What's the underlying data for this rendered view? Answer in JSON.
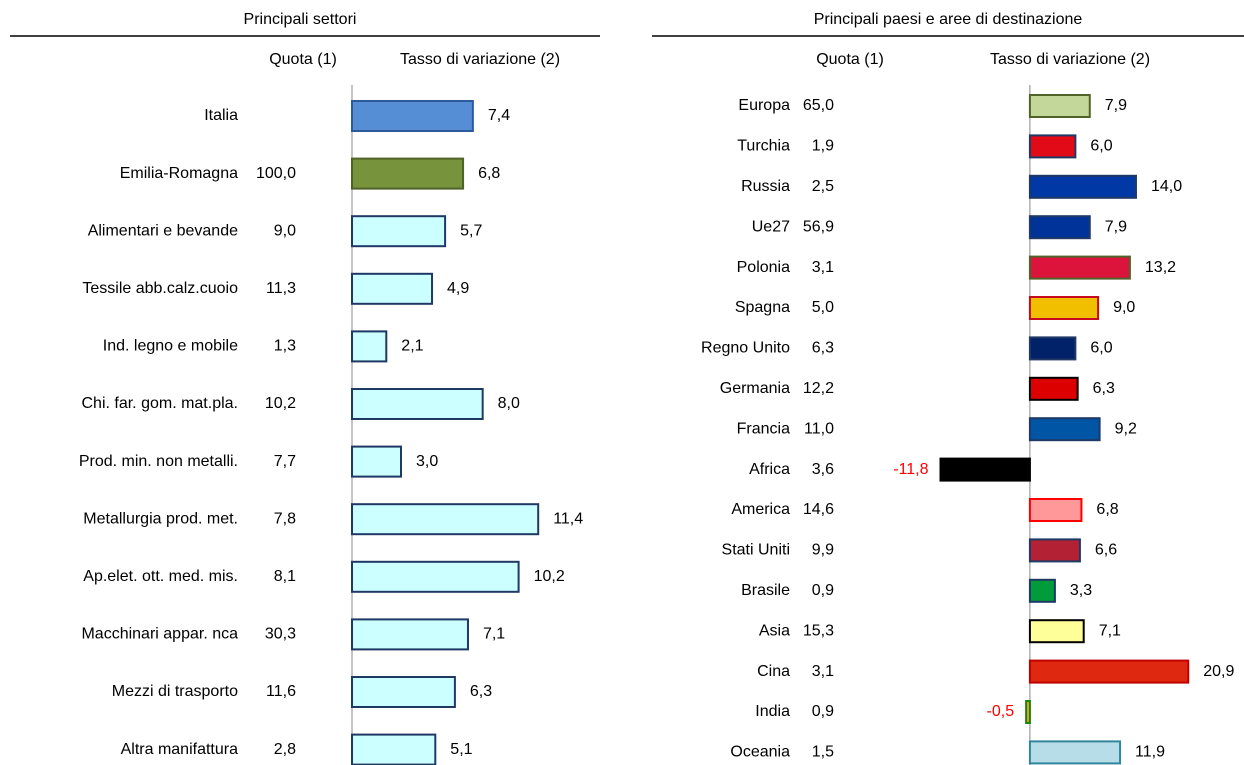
{
  "chart_data": [
    {
      "type": "bar",
      "title": "Principali settori",
      "quota_header": "Quota (1)",
      "change_header": "Tasso di variazione (2)",
      "categories": [
        "Italia",
        "Emilia-Romagna",
        "Alimentari e bevande",
        "Tessile abb.calz.cuoio",
        "Ind. legno e mobile",
        "Chi. far. gom. mat.pla.",
        "Prod. min. non metalli.",
        "Metallurgia prod. met.",
        "Ap.elet. ott. med. mis.",
        "Macchinari appar. nca",
        "Mezzi di trasporto",
        "Altra manifattura"
      ],
      "quota": [
        null,
        "100,0",
        "9,0",
        "11,3",
        "1,3",
        "10,2",
        "7,7",
        "7,8",
        "8,1",
        "30,3",
        "11,6",
        "2,8"
      ],
      "values": [
        7.4,
        6.8,
        5.7,
        4.9,
        2.1,
        8.0,
        3.0,
        11.4,
        10.2,
        7.1,
        6.3,
        5.1
      ],
      "value_labels": [
        "7,4",
        "6,8",
        "5,7",
        "4,9",
        "2,1",
        "8,0",
        "3,0",
        "11,4",
        "10,2",
        "7,1",
        "6,3",
        "5,1"
      ],
      "colors": [
        "#558ed5",
        "#77933c",
        "#ccffff",
        "#ccffff",
        "#ccffff",
        "#ccffff",
        "#ccffff",
        "#ccffff",
        "#ccffff",
        "#ccffff",
        "#ccffff",
        "#ccffff"
      ],
      "stroke_colors": [
        "#2e5a9c",
        "#4f6228",
        "#1f3864",
        "#1f3864",
        "#1f3864",
        "#1f3864",
        "#1f3864",
        "#1f3864",
        "#1f3864",
        "#1f3864",
        "#1f3864",
        "#1f3864"
      ],
      "xlim": [
        0,
        15
      ]
    },
    {
      "type": "bar",
      "title": "Principali paesi e aree di destinazione",
      "quota_header": "Quota (1)",
      "change_header": "Tasso di variazione (2)",
      "categories": [
        "Europa",
        "Turchia",
        "Russia",
        "Ue27",
        "Polonia",
        "Spagna",
        "Regno Unito",
        "Germania",
        "Francia",
        "Africa",
        "America",
        "Stati Uniti",
        "Brasile",
        "Asia",
        "Cina",
        "India",
        "Oceania"
      ],
      "quota": [
        "65,0",
        "1,9",
        "2,5",
        "56,9",
        "3,1",
        "5,0",
        "6,3",
        "12,2",
        "11,0",
        "3,6",
        "14,6",
        "9,9",
        "0,9",
        "15,3",
        "3,1",
        "0,9",
        "1,5"
      ],
      "values": [
        7.9,
        6.0,
        14.0,
        7.9,
        13.2,
        9.0,
        6.0,
        6.3,
        9.2,
        -11.8,
        6.8,
        6.6,
        3.3,
        7.1,
        20.9,
        -0.5,
        11.9
      ],
      "value_labels": [
        "7,9",
        "6,0",
        "14,0",
        "7,9",
        "13,2",
        "9,0",
        "6,0",
        "6,3",
        "9,2",
        "-11,8",
        "6,8",
        "6,6",
        "3,3",
        "7,1",
        "20,9",
        "-0,5",
        "11,9"
      ],
      "colors": [
        "#c4d79b",
        "#e30a17",
        "#0039a6",
        "#003399",
        "#dc143c",
        "#f1bf00",
        "#012169",
        "#dd0000",
        "#0055a4",
        "#000000",
        "#ff9999",
        "#b22234",
        "#009c3b",
        "#ffff99",
        "#de2910",
        "#ff9933",
        "#b7dde8"
      ],
      "stroke_colors": [
        "#4f6228",
        "#1f3864",
        "#1f3864",
        "#1f3864",
        "#4f6228",
        "#c60b1e",
        "#1f3864",
        "#000000",
        "#1f3864",
        "#000000",
        "#ff0000",
        "#1f3864",
        "#1f3864",
        "#000000",
        "#c00000",
        "#138808",
        "#31859c"
      ],
      "xlim": [
        -12,
        21
      ]
    }
  ]
}
